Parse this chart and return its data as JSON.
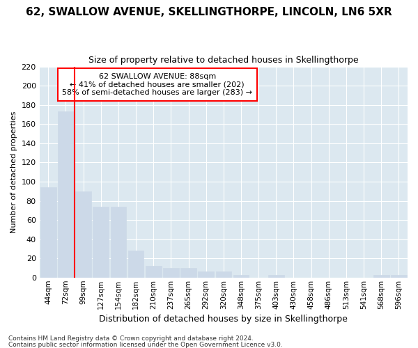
{
  "title1": "62, SWALLOW AVENUE, SKELLINGTHORPE, LINCOLN, LN6 5XR",
  "title2": "Size of property relative to detached houses in Skellingthorpe",
  "xlabel": "Distribution of detached houses by size in Skellingthorpe",
  "ylabel": "Number of detached properties",
  "footer1": "Contains HM Land Registry data © Crown copyright and database right 2024.",
  "footer2": "Contains public sector information licensed under the Open Government Licence v3.0.",
  "annotation_line1": "62 SWALLOW AVENUE: 88sqm",
  "annotation_line2": "← 41% of detached houses are smaller (202)",
  "annotation_line3": "58% of semi-detached houses are larger (283) →",
  "bar_labels": [
    "44sqm",
    "72sqm",
    "99sqm",
    "127sqm",
    "154sqm",
    "182sqm",
    "210sqm",
    "237sqm",
    "265sqm",
    "292sqm",
    "320sqm",
    "348sqm",
    "375sqm",
    "403sqm",
    "430sqm",
    "458sqm",
    "486sqm",
    "513sqm",
    "541sqm",
    "568sqm",
    "596sqm"
  ],
  "bar_values": [
    94,
    173,
    90,
    74,
    74,
    28,
    12,
    10,
    10,
    6,
    6,
    3,
    0,
    3,
    0,
    0,
    0,
    0,
    0,
    3,
    3
  ],
  "bar_color": "#ccd9e8",
  "bar_edgecolor": "#ccd9e8",
  "marker_color": "red",
  "ylim": [
    0,
    220
  ],
  "yticks": [
    0,
    20,
    40,
    60,
    80,
    100,
    120,
    140,
    160,
    180,
    200,
    220
  ],
  "fig_bg_color": "#ffffff",
  "plot_bg_color": "#dce8f0",
  "grid_color": "#ffffff",
  "annotation_box_facecolor": "#ffffff",
  "annotation_box_edgecolor": "red",
  "title1_fontsize": 11,
  "title2_fontsize": 9,
  "xlabel_fontsize": 9,
  "ylabel_fontsize": 8,
  "xtick_fontsize": 7.5,
  "ytick_fontsize": 8,
  "footer_fontsize": 6.5,
  "ann_fontsize": 8
}
